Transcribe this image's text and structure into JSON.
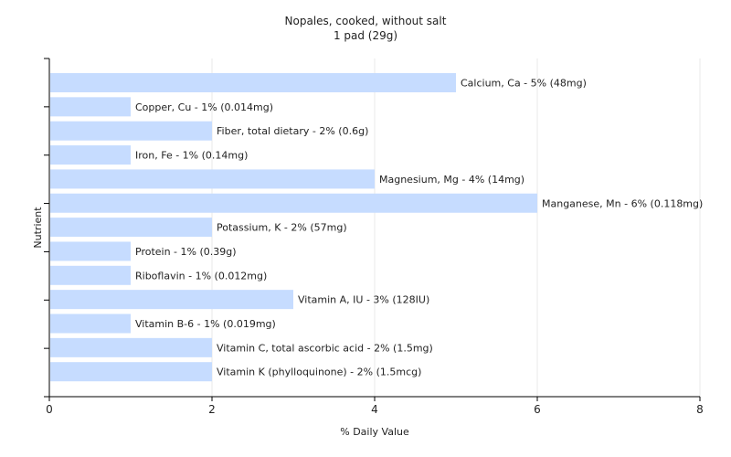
{
  "chart_data": {
    "type": "bar",
    "orientation": "horizontal",
    "title": "Nopales, cooked, without salt",
    "subtitle": "1 pad (29g)",
    "xlabel": "% Daily Value",
    "ylabel": "Nutrient",
    "xlim": [
      0,
      8
    ],
    "xticks": [
      "0",
      "2",
      "4",
      "6",
      "8"
    ],
    "grid": true,
    "bar_color": "#c6dcff",
    "categories": [
      "Calcium, Ca",
      "Copper, Cu",
      "Fiber, total dietary",
      "Iron, Fe",
      "Magnesium, Mg",
      "Manganese, Mn",
      "Potassium, K",
      "Protein",
      "Riboflavin",
      "Vitamin A, IU",
      "Vitamin B-6",
      "Vitamin C, total ascorbic acid",
      "Vitamin K (phylloquinone)"
    ],
    "values": [
      5,
      1,
      2,
      1,
      4,
      6,
      2,
      1,
      1,
      3,
      1,
      2,
      2
    ],
    "labels": [
      "Calcium, Ca - 5% (48mg)",
      "Copper, Cu - 1% (0.014mg)",
      "Fiber, total dietary - 2% (0.6g)",
      "Iron, Fe - 1% (0.14mg)",
      "Magnesium, Mg - 4% (14mg)",
      "Manganese, Mn - 6% (0.118mg)",
      "Potassium, K - 2% (57mg)",
      "Protein - 1% (0.39g)",
      "Riboflavin - 1% (0.012mg)",
      "Vitamin A, IU - 3% (128IU)",
      "Vitamin B-6 - 1% (0.019mg)",
      "Vitamin C, total ascorbic acid - 2% (1.5mg)",
      "Vitamin K (phylloquinone) - 2% (1.5mcg)"
    ]
  }
}
